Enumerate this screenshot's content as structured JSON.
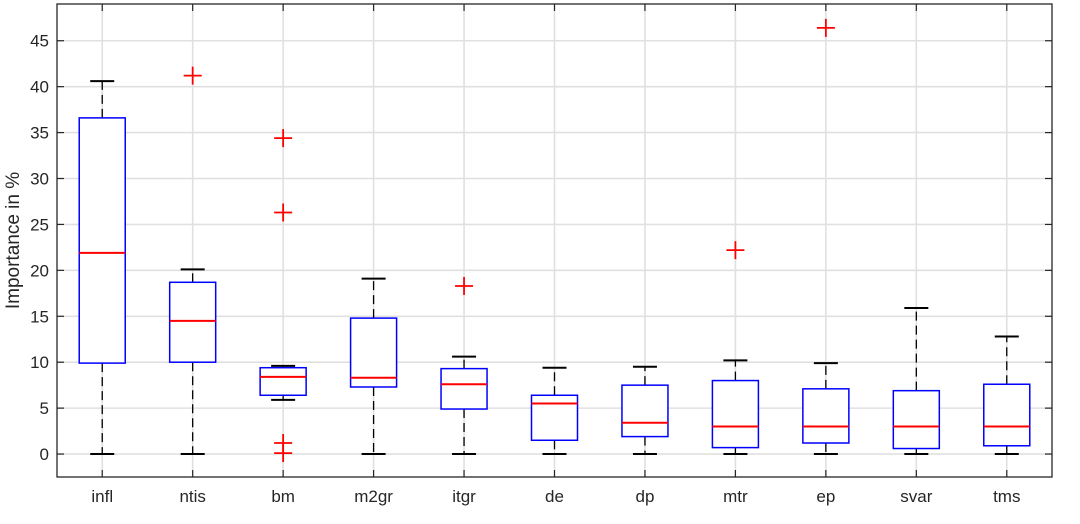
{
  "chart_data": {
    "type": "boxplot",
    "ylabel": "Importance in %",
    "xlabel": "",
    "ylim": [
      -2.5,
      49
    ],
    "yticks": [
      0,
      5,
      10,
      15,
      20,
      25,
      30,
      35,
      40,
      45
    ],
    "grid": true,
    "categories": [
      "infl",
      "ntis",
      "bm",
      "m2gr",
      "itgr",
      "de",
      "dp",
      "mtr",
      "ep",
      "svar",
      "tms"
    ],
    "boxes": [
      {
        "label": "infl",
        "whisker_low": 0,
        "q1": 9.9,
        "median": 21.9,
        "q3": 36.6,
        "whisker_high": 40.6,
        "outliers": []
      },
      {
        "label": "ntis",
        "whisker_low": 0,
        "q1": 10.0,
        "median": 14.5,
        "q3": 18.7,
        "whisker_high": 20.1,
        "outliers": [
          41.2
        ]
      },
      {
        "label": "bm",
        "whisker_low": 5.9,
        "q1": 6.4,
        "median": 8.4,
        "q3": 9.4,
        "whisker_high": 9.6,
        "outliers": [
          34.4,
          26.3,
          1.2,
          0.1
        ]
      },
      {
        "label": "m2gr",
        "whisker_low": 0,
        "q1": 7.3,
        "median": 8.3,
        "q3": 14.8,
        "whisker_high": 19.1,
        "outliers": []
      },
      {
        "label": "itgr",
        "whisker_low": 0,
        "q1": 4.9,
        "median": 7.6,
        "q3": 9.3,
        "whisker_high": 10.6,
        "outliers": [
          18.3
        ]
      },
      {
        "label": "de",
        "whisker_low": 0,
        "q1": 1.5,
        "median": 5.5,
        "q3": 6.4,
        "whisker_high": 9.4,
        "outliers": []
      },
      {
        "label": "dp",
        "whisker_low": 0,
        "q1": 1.9,
        "median": 3.4,
        "q3": 7.5,
        "whisker_high": 9.5,
        "outliers": []
      },
      {
        "label": "mtr",
        "whisker_low": 0,
        "q1": 0.7,
        "median": 3.0,
        "q3": 8.0,
        "whisker_high": 10.2,
        "outliers": [
          22.2
        ]
      },
      {
        "label": "ep",
        "whisker_low": 0,
        "q1": 1.2,
        "median": 3.0,
        "q3": 7.1,
        "whisker_high": 9.9,
        "outliers": [
          46.4
        ]
      },
      {
        "label": "svar",
        "whisker_low": 0,
        "q1": 0.6,
        "median": 3.0,
        "q3": 6.9,
        "whisker_high": 15.9,
        "outliers": []
      },
      {
        "label": "tms",
        "whisker_low": 0,
        "q1": 0.9,
        "median": 3.0,
        "q3": 7.6,
        "whisker_high": 12.8,
        "outliers": []
      }
    ],
    "colors": {
      "box": "#0000ff",
      "median": "#ff0000",
      "outlier": "#ff0000",
      "whisker": "#000000",
      "grid": "#e0e0e0",
      "axes": "#262626"
    }
  }
}
